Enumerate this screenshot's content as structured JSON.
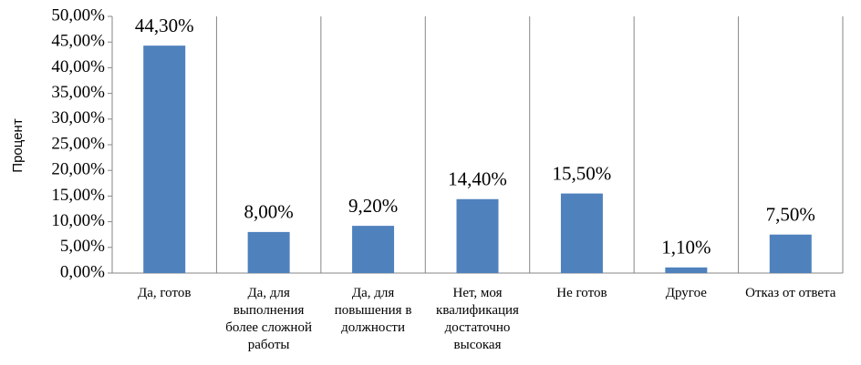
{
  "chart_data": {
    "type": "bar",
    "y_label": "Процент",
    "categories": [
      "Да, готов",
      "Да, для выполнения более сложной работы",
      "Да, для повышения в должности",
      "Нет, моя квалификация достаточно высокая",
      "Не готов",
      "Другое",
      "Отказ от ответа"
    ],
    "values": [
      44.3,
      8.0,
      9.2,
      14.4,
      15.5,
      1.1,
      7.5
    ],
    "value_labels": [
      "44,30%",
      "8,00%",
      "9,20%",
      "14,40%",
      "15,50%",
      "1,10%",
      "7,50%"
    ],
    "color": "#4f81bd",
    "ylim": [
      0,
      50
    ],
    "yticks": [
      {
        "value": 0,
        "label": "0,00%"
      },
      {
        "value": 5,
        "label": "5,00%"
      },
      {
        "value": 10,
        "label": "10,00%"
      },
      {
        "value": 15,
        "label": "15,00%"
      },
      {
        "value": 20,
        "label": "20,00%"
      },
      {
        "value": 25,
        "label": "25,00%"
      },
      {
        "value": 30,
        "label": "30,00%"
      },
      {
        "value": 35,
        "label": "35,00%"
      },
      {
        "value": 40,
        "label": "40,00%"
      },
      {
        "value": 45,
        "label": "45,00%"
      },
      {
        "value": 50,
        "label": "50,00%"
      }
    ]
  }
}
